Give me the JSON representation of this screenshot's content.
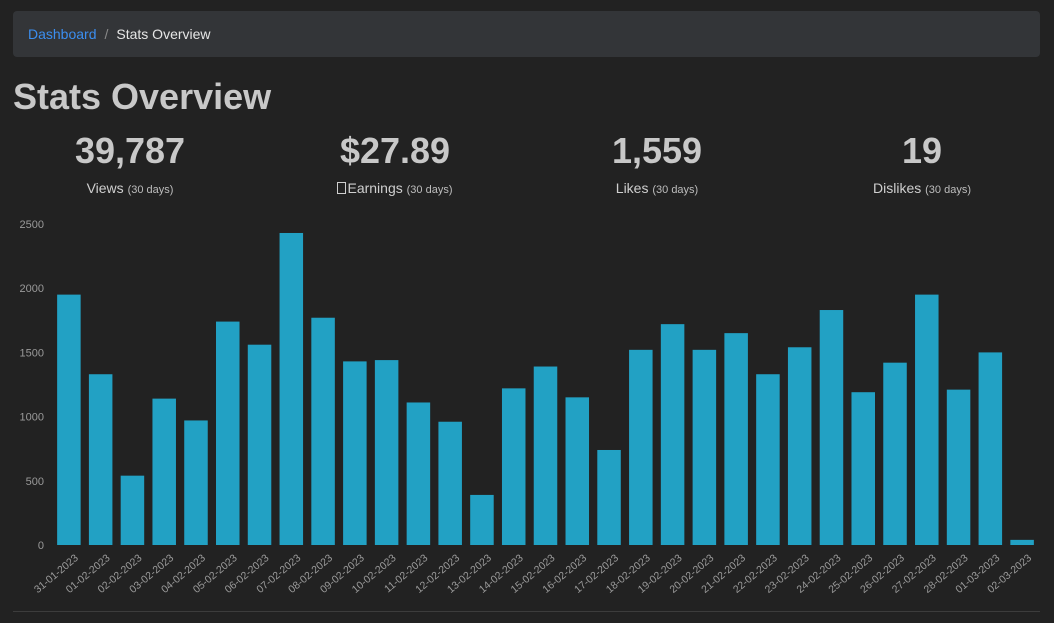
{
  "breadcrumb": {
    "home": "Dashboard",
    "separator": "/",
    "current": "Stats Overview"
  },
  "page": {
    "title": "Stats Overview"
  },
  "stats": [
    {
      "value": "39,787",
      "label": "Views",
      "period": "(30 days)"
    },
    {
      "value": "$27.89",
      "label": "Earnings",
      "period": "(30 days)",
      "icon": "currency-icon"
    },
    {
      "value": "1,559",
      "label": "Likes",
      "period": "(30 days)"
    },
    {
      "value": "19",
      "label": "Dislikes",
      "period": "(30 days)"
    }
  ],
  "colors": {
    "background": "#222222",
    "bar": "#22a1c4",
    "link": "#3b8ef0"
  },
  "chart_data": {
    "type": "bar",
    "categories": [
      "31-01-2023",
      "01-02-2023",
      "02-02-2023",
      "03-02-2023",
      "04-02-2023",
      "05-02-2023",
      "06-02-2023",
      "07-02-2023",
      "08-02-2023",
      "09-02-2023",
      "10-02-2023",
      "11-02-2023",
      "12-02-2023",
      "13-02-2023",
      "14-02-2023",
      "15-02-2023",
      "16-02-2023",
      "17-02-2023",
      "18-02-2023",
      "19-02-2023",
      "20-02-2023",
      "21-02-2023",
      "22-02-2023",
      "23-02-2023",
      "24-02-2023",
      "25-02-2023",
      "26-02-2023",
      "27-02-2023",
      "28-02-2023",
      "01-03-2023",
      "02-03-2023"
    ],
    "values": [
      1950,
      1330,
      540,
      1140,
      970,
      1740,
      1560,
      2430,
      1770,
      1430,
      1440,
      1110,
      960,
      390,
      1220,
      1390,
      1150,
      740,
      1520,
      1720,
      1520,
      1650,
      1330,
      1540,
      1830,
      1190,
      1420,
      1950,
      1210,
      1500,
      40
    ],
    "yticks": [
      0,
      500,
      1000,
      1500,
      2000,
      2500
    ],
    "ylim": [
      0,
      2500
    ],
    "grid": false,
    "xlabel": "",
    "ylabel": ""
  }
}
